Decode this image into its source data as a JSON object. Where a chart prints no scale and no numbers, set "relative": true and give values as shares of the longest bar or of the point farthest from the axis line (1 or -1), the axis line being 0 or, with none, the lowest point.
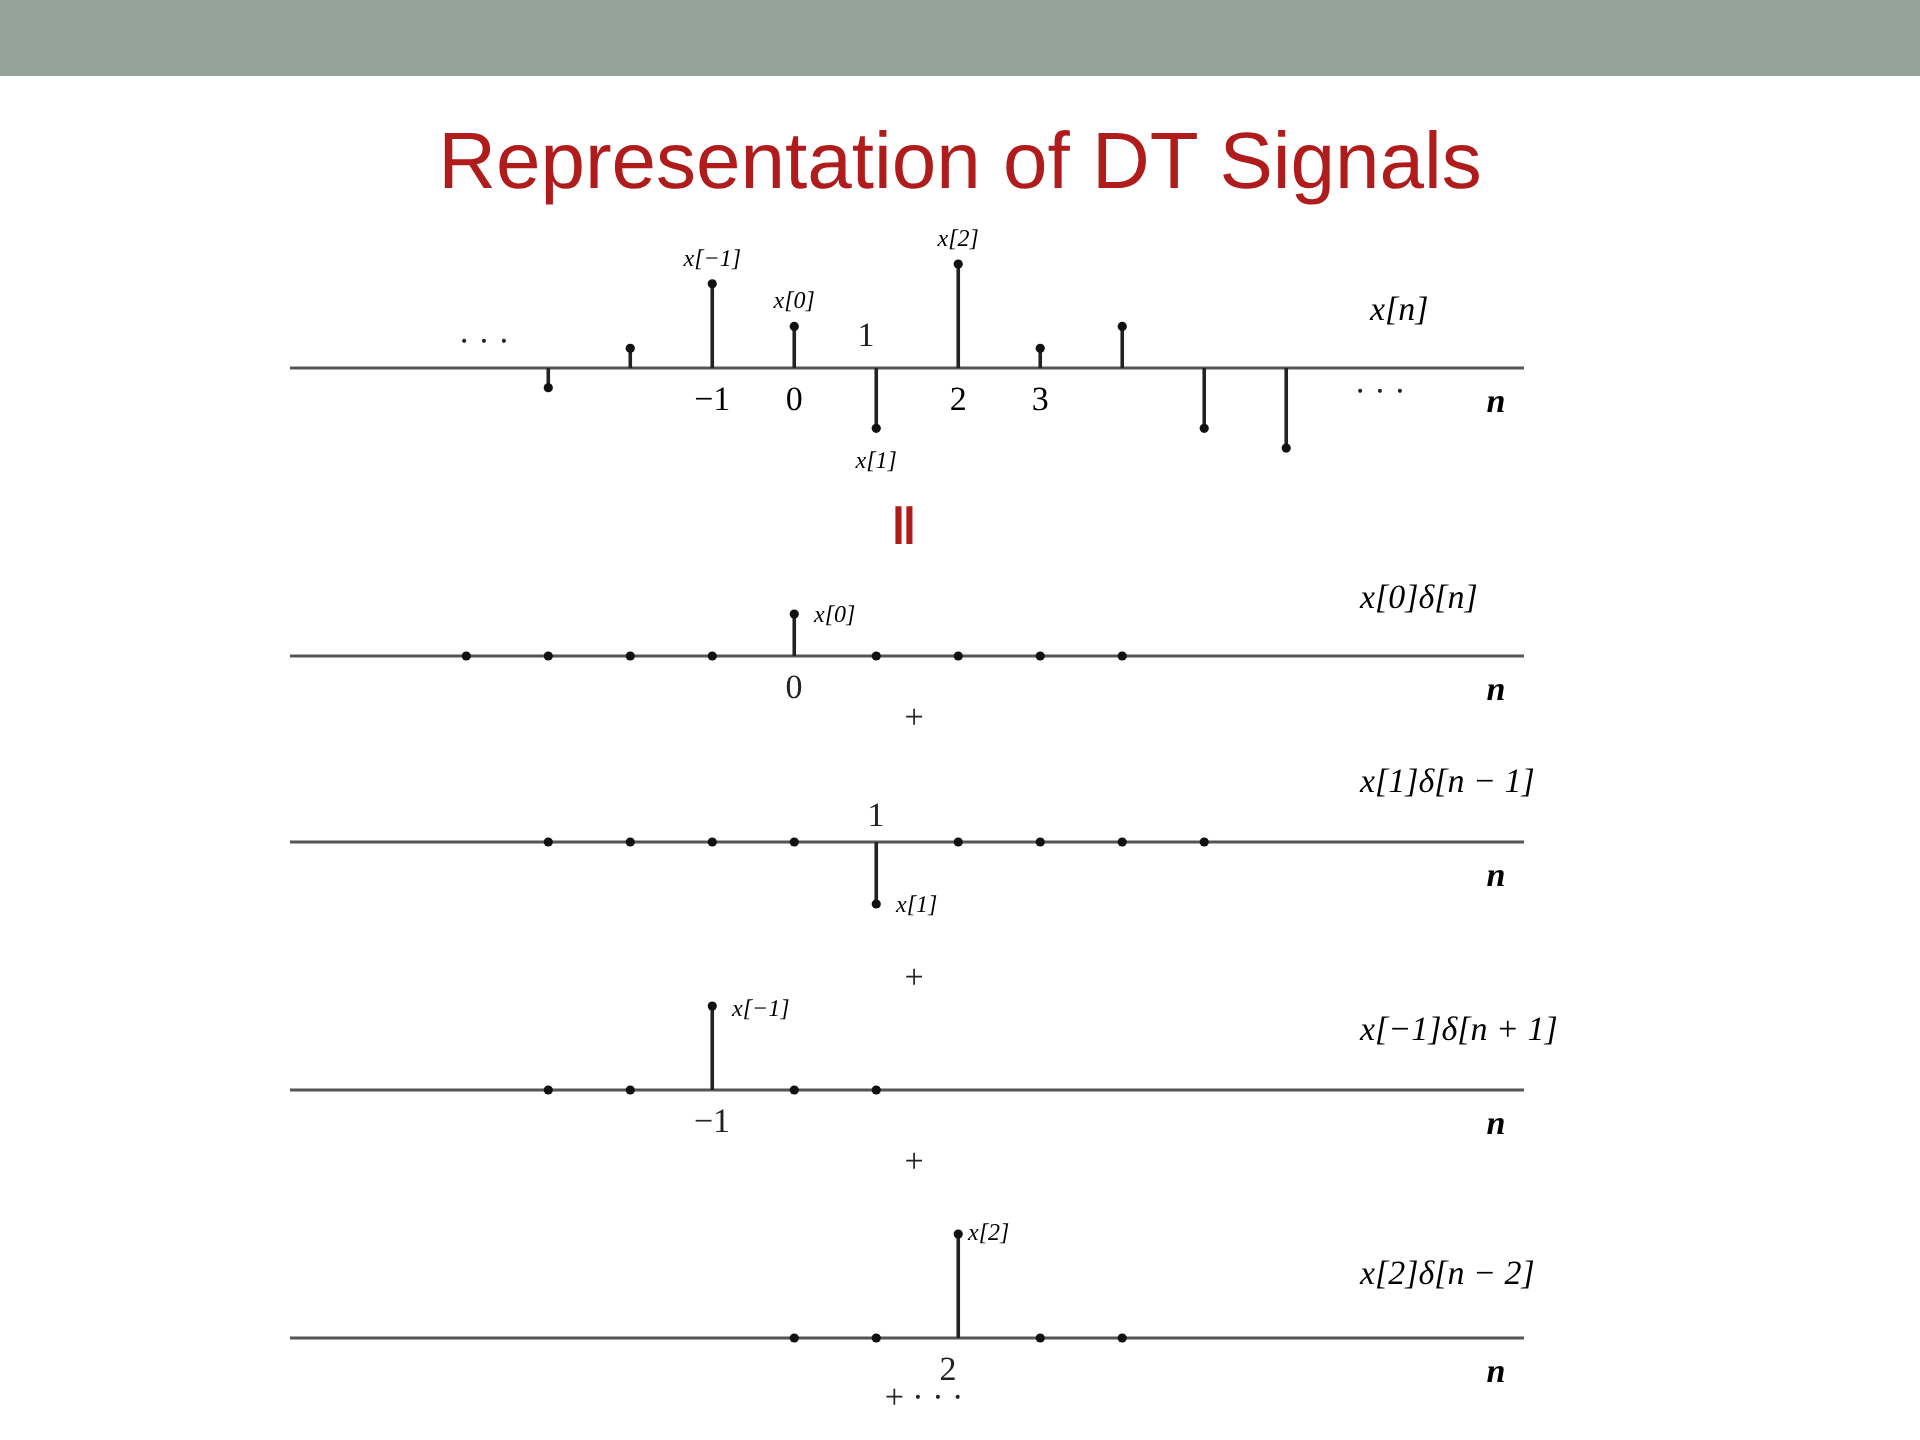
{
  "chart_data": [
    {
      "type": "lollipop",
      "title": "Representation of DT Signals",
      "ylabel": "x[n]",
      "xlabel": "n",
      "relative": true,
      "marker": "circle",
      "x": [
        -3,
        -2,
        -1,
        0,
        1,
        2,
        3,
        4,
        5,
        6
      ],
      "xlim": [
        -6.15,
        8.9
      ],
      "xticks": [
        {
          "value": -1,
          "label": "−1"
        },
        0,
        2,
        3
      ],
      "values": [
        -0.19,
        0.19,
        0.81,
        0.4,
        -0.58,
        1,
        0.19,
        0.4,
        -0.58,
        -0.77
      ],
      "annotations": [
        "· · ·",
        "· · ·",
        "‖",
        "1",
        {
          "text": "x[−1]",
          "x": -1,
          "y": 0.81
        },
        {
          "text": "x[0]",
          "x": 0,
          "y": 0.4
        },
        {
          "text": "x[1]",
          "x": 1,
          "y": -0.58
        },
        {
          "text": "x[2]",
          "x": 2,
          "y": 1
        }
      ]
    },
    {
      "type": "lollipop",
      "ylabel": "x[0]δ[n]",
      "xlabel": "n",
      "relative": true,
      "marker": "circle",
      "tick_labels": false,
      "x": [
        -4,
        -3,
        -2,
        -1,
        0,
        1,
        2,
        3,
        4
      ],
      "xlim": [
        -6.15,
        8.9
      ],
      "values": [
        0,
        0,
        0,
        0,
        1,
        0,
        0,
        0,
        0
      ],
      "annotations": [
        "+",
        "0",
        "x[0]"
      ]
    },
    {
      "type": "lollipop",
      "ylabel": "x[1]δ[n − 1]",
      "xlabel": "n",
      "relative": true,
      "marker": "circle",
      "tick_labels": false,
      "x": [
        -3,
        -2,
        -1,
        0,
        1,
        2,
        3,
        4,
        5
      ],
      "xlim": [
        -6.15,
        8.9
      ],
      "values": [
        0,
        0,
        0,
        0,
        -1,
        0,
        0,
        0,
        0
      ],
      "annotations": [
        "+",
        "1",
        "x[1]"
      ]
    },
    {
      "type": "lollipop",
      "ylabel": "x[−1]δ[n + 1]",
      "xlabel": "n",
      "relative": true,
      "marker": "circle",
      "tick_labels": false,
      "x": [
        -3,
        -2,
        -1,
        0,
        1
      ],
      "xlim": [
        -6.15,
        8.9
      ],
      "values": [
        0,
        0,
        1,
        0,
        0
      ],
      "annotations": [
        "+",
        "−1",
        "x[−1]"
      ]
    },
    {
      "type": "lollipop",
      "ylabel": "x[2]δ[n − 2]",
      "xlabel": "n",
      "relative": true,
      "marker": "circle",
      "tick_labels": false,
      "x": [
        0,
        1,
        2,
        3,
        4
      ],
      "xlim": [
        -6.15,
        8.9
      ],
      "values": [
        0,
        0,
        1,
        0,
        0
      ],
      "annotations": [
        "+ · · ·",
        "2",
        "x[2]"
      ]
    }
  ]
}
